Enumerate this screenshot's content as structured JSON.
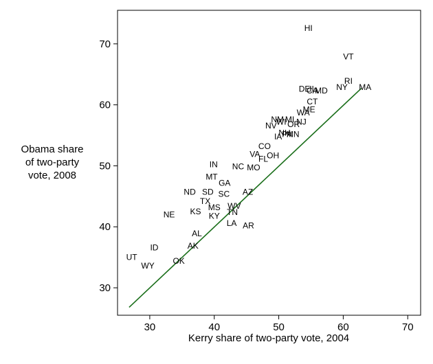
{
  "chart_data": {
    "type": "scatter",
    "title": "",
    "xlabel": "Kerry share of two-party vote, 2004",
    "ylabel_lines": [
      "Obama share",
      "of two-party",
      "vote, 2008"
    ],
    "xlim": [
      25,
      72
    ],
    "ylim": [
      25.5,
      75.5
    ],
    "xticks": [
      30,
      40,
      50,
      60,
      70
    ],
    "yticks": [
      30,
      40,
      50,
      60,
      70
    ],
    "grid": false,
    "line_color": "#1a6e1a",
    "fit_line": {
      "x": [
        26.8,
        62.8
      ],
      "y": [
        26.8,
        62.7
      ]
    },
    "points": [
      {
        "label": "HI",
        "x": 54.6,
        "y": 72.6
      },
      {
        "label": "VT",
        "x": 60.8,
        "y": 67.9
      },
      {
        "label": "RI",
        "x": 60.8,
        "y": 63.9
      },
      {
        "label": "NY",
        "x": 59.8,
        "y": 62.9
      },
      {
        "label": "MA",
        "x": 63.4,
        "y": 62.9
      },
      {
        "label": "DE",
        "x": 54.0,
        "y": 62.6
      },
      {
        "label": "IL",
        "x": 55.3,
        "y": 62.6
      },
      {
        "label": "CA",
        "x": 55.2,
        "y": 62.3
      },
      {
        "label": "MD",
        "x": 56.6,
        "y": 62.3
      },
      {
        "label": "CT",
        "x": 55.2,
        "y": 60.5
      },
      {
        "label": "ME",
        "x": 54.7,
        "y": 59.2
      },
      {
        "label": "WA",
        "x": 53.8,
        "y": 58.7
      },
      {
        "label": "NM",
        "x": 49.8,
        "y": 57.6
      },
      {
        "label": "MI",
        "x": 51.7,
        "y": 57.6
      },
      {
        "label": "WI",
        "x": 50.4,
        "y": 57.2
      },
      {
        "label": "OR",
        "x": 52.3,
        "y": 56.8
      },
      {
        "label": "NJ",
        "x": 53.5,
        "y": 57.2
      },
      {
        "label": "NV",
        "x": 48.8,
        "y": 56.6
      },
      {
        "label": "NH",
        "x": 50.9,
        "y": 55.4
      },
      {
        "label": "PA",
        "x": 51.3,
        "y": 55.2
      },
      {
        "label": "MN",
        "x": 52.2,
        "y": 55.2
      },
      {
        "label": "IA",
        "x": 49.9,
        "y": 54.8
      },
      {
        "label": "CO",
        "x": 47.8,
        "y": 53.2
      },
      {
        "label": "VA",
        "x": 46.3,
        "y": 51.9
      },
      {
        "label": "OH",
        "x": 49.1,
        "y": 51.7
      },
      {
        "label": "FL",
        "x": 47.6,
        "y": 51.1
      },
      {
        "label": "IN",
        "x": 39.9,
        "y": 50.2
      },
      {
        "label": "NC",
        "x": 43.7,
        "y": 49.9
      },
      {
        "label": "MO",
        "x": 46.1,
        "y": 49.7
      },
      {
        "label": "MT",
        "x": 39.6,
        "y": 48.2
      },
      {
        "label": "GA",
        "x": 41.6,
        "y": 47.2
      },
      {
        "label": "ND",
        "x": 36.2,
        "y": 45.7
      },
      {
        "label": "SD",
        "x": 39.0,
        "y": 45.7
      },
      {
        "label": "SC",
        "x": 41.5,
        "y": 45.4
      },
      {
        "label": "AZ",
        "x": 45.2,
        "y": 45.7
      },
      {
        "label": "TX",
        "x": 38.6,
        "y": 44.2
      },
      {
        "label": "MS",
        "x": 40.0,
        "y": 43.2
      },
      {
        "label": "WV",
        "x": 43.1,
        "y": 43.4
      },
      {
        "label": "KS",
        "x": 37.1,
        "y": 42.5
      },
      {
        "label": "NE",
        "x": 33.0,
        "y": 42.0
      },
      {
        "label": "KY",
        "x": 40.0,
        "y": 41.8
      },
      {
        "label": "TN",
        "x": 42.8,
        "y": 42.4
      },
      {
        "label": "LA",
        "x": 42.7,
        "y": 40.6
      },
      {
        "label": "AR",
        "x": 45.3,
        "y": 40.2
      },
      {
        "label": "AL",
        "x": 37.3,
        "y": 38.9
      },
      {
        "label": "AK",
        "x": 36.7,
        "y": 36.9
      },
      {
        "label": "ID",
        "x": 30.7,
        "y": 36.6
      },
      {
        "label": "UT",
        "x": 27.2,
        "y": 35.0
      },
      {
        "label": "OK",
        "x": 34.5,
        "y": 34.4
      },
      {
        "label": "WY",
        "x": 29.7,
        "y": 33.6
      }
    ]
  }
}
